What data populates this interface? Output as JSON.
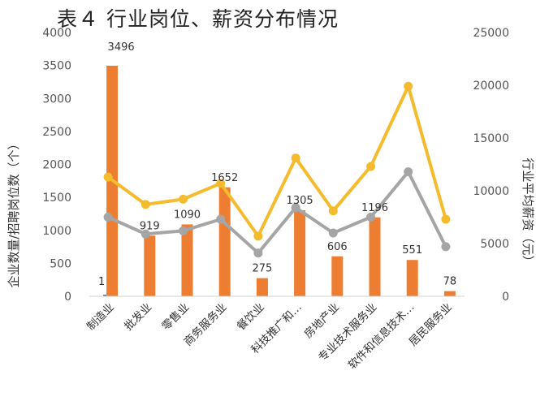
{
  "title": "表４ 行业岗位、薪资分布情况",
  "chart_data": {
    "type": "bar",
    "categories": [
      "制造业",
      "批发业",
      "零售业",
      "商务服务业",
      "餐饮业",
      "科技推广和…",
      "房地产业",
      "专业技术服务业",
      "软件和信息技术…",
      "居民服务业"
    ],
    "ylabel": "企业数量/招聘岗位数（个）",
    "y2label": "行业平均薪资（元）",
    "ylim": [
      0,
      4000
    ],
    "yticks": [
      0,
      500,
      1000,
      1500,
      2000,
      2500,
      3000,
      3500,
      4000
    ],
    "y2lim": [
      0,
      25000
    ],
    "y2ticks": [
      0,
      5000,
      10000,
      15000,
      20000,
      25000
    ],
    "series": [
      {
        "kind": "bar",
        "axis": "left",
        "color": "#ED7D31",
        "values": [
          3496,
          919,
          1090,
          1652,
          275,
          1305,
          606,
          1196,
          551,
          78
        ],
        "labels": [
          "3496",
          "919",
          "1090",
          "1652",
          "275",
          "1305",
          "606",
          "1196",
          "551",
          "78"
        ]
      },
      {
        "kind": "bar",
        "axis": "left",
        "color": "#4472C4",
        "values": [
          1,
          null,
          null,
          null,
          null,
          null,
          null,
          null,
          null,
          null
        ],
        "labels": [
          "1",
          "",
          "",
          "",
          "",
          "",
          "",
          "",
          "",
          ""
        ]
      },
      {
        "kind": "line",
        "axis": "right",
        "color": "#F4BC2D",
        "values": [
          11300,
          8700,
          9200,
          10700,
          5700,
          13100,
          8100,
          12300,
          19900,
          7300
        ]
      },
      {
        "kind": "line",
        "axis": "right",
        "color": "#A5A5A5",
        "values": [
          7500,
          5900,
          6200,
          7300,
          4100,
          8400,
          6000,
          7500,
          11800,
          4700
        ]
      }
    ]
  }
}
